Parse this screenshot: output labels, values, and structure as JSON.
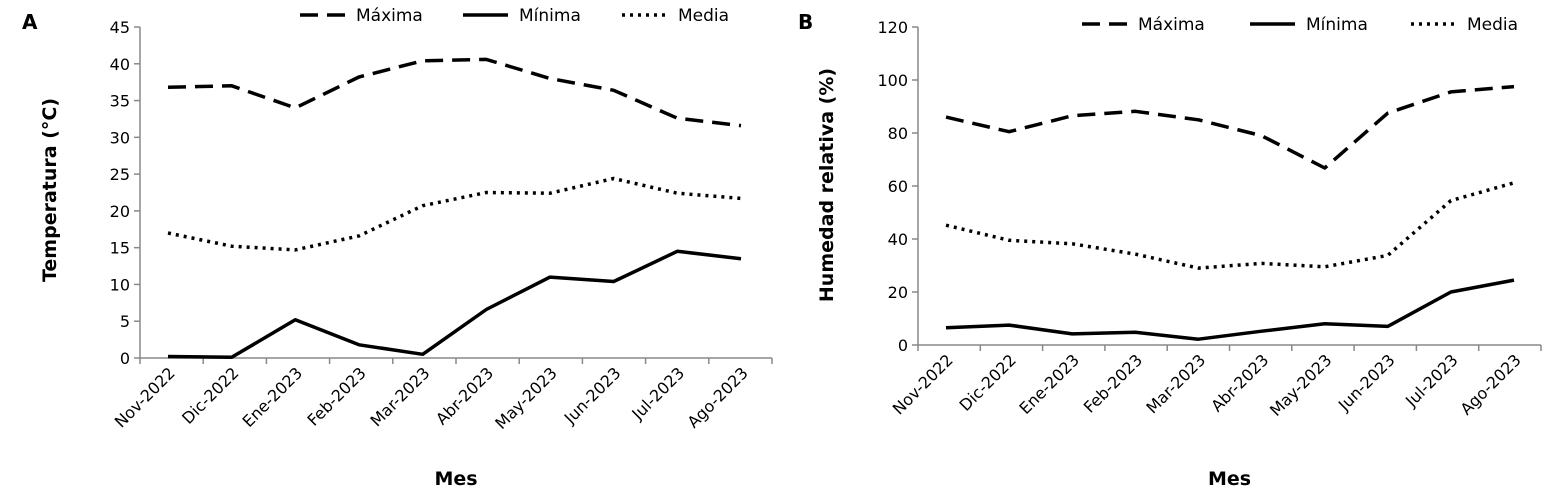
{
  "chart_data": [
    {
      "type": "line",
      "panel": "A",
      "xlabel": "Mes",
      "ylabel": "Temperatura (°C)",
      "ylim": [
        0,
        45
      ],
      "yticks": [
        "0",
        "5",
        "10",
        "15",
        "20",
        "25",
        "30",
        "35",
        "40",
        "45"
      ],
      "categories": [
        "Nov-2022",
        "Dic-2022",
        "Ene-2023",
        "Feb-2023",
        "Mar-2023",
        "Abr-2023",
        "May-2023",
        "Jun-2023",
        "Jul-2023",
        "Ago-2023"
      ],
      "legend_position": "top",
      "grid": false,
      "series": [
        {
          "name": "Máxima",
          "style": "dashed",
          "values": [
            36.8,
            37.0,
            34.0,
            38.2,
            40.4,
            40.6,
            38.0,
            36.4,
            32.6,
            31.6
          ]
        },
        {
          "name": "Mínima",
          "style": "solid",
          "values": [
            0.2,
            0.1,
            5.2,
            1.8,
            0.5,
            6.6,
            11.0,
            10.4,
            14.5,
            13.5
          ]
        },
        {
          "name": "Media",
          "style": "dotted",
          "values": [
            17.0,
            15.2,
            14.7,
            16.6,
            20.7,
            22.5,
            22.4,
            24.4,
            22.4,
            21.7
          ]
        }
      ]
    },
    {
      "type": "line",
      "panel": "B",
      "xlabel": "Mes",
      "ylabel": "Humedad relativa (%)",
      "ylim": [
        0,
        120
      ],
      "yticks": [
        "0",
        "20",
        "40",
        "60",
        "80",
        "100",
        "120"
      ],
      "categories": [
        "Nov-2022",
        "Dic-2022",
        "Ene-2023",
        "Feb-2023",
        "Mar-2023",
        "Abr-2023",
        "May-2023",
        "Jun-2023",
        "Jul-2023",
        "Ago-2023"
      ],
      "legend_position": "top",
      "grid": false,
      "series": [
        {
          "name": "Máxima",
          "style": "dashed",
          "values": [
            86,
            80.5,
            86.5,
            88.2,
            85,
            79,
            66.8,
            87.5,
            95.5,
            97.5
          ]
        },
        {
          "name": "Mínima",
          "style": "solid",
          "values": [
            6.5,
            7.5,
            4.2,
            4.8,
            2.2,
            5.2,
            8.0,
            7.0,
            20.0,
            24.5
          ]
        },
        {
          "name": "Media",
          "style": "dotted",
          "values": [
            45.2,
            39.5,
            38.2,
            34.3,
            29.0,
            30.8,
            29.5,
            33.8,
            54.5,
            61.2
          ]
        }
      ]
    }
  ]
}
